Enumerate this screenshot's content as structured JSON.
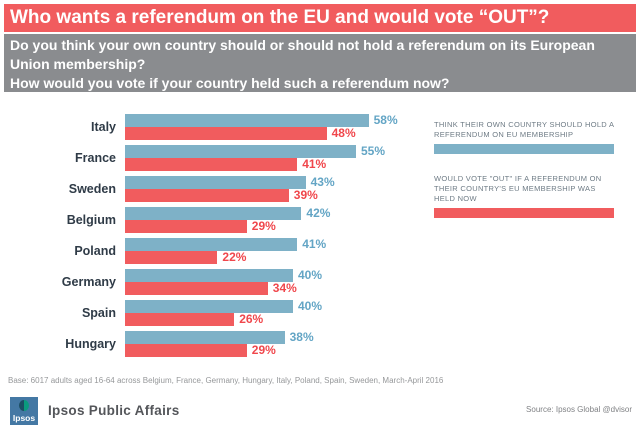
{
  "title": "Who wants a referendum on the EU and would vote “OUT”?",
  "subtitle": {
    "question1": "Do you think your own country should or should not hold a referendum on its European Union membership?",
    "question2": "How would you vote if your country held such a referendum now?"
  },
  "chart_data": {
    "type": "bar",
    "orientation": "horizontal",
    "title": "Who wants a referendum on the EU and would vote “OUT”?",
    "categories": [
      "Italy",
      "France",
      "Sweden",
      "Belgium",
      "Poland",
      "Germany",
      "Spain",
      "Hungary"
    ],
    "series": [
      {
        "name": "THINK THEIR OWN COUNTRY SHOULD HOLD A REFERENDUM ON EU MEMBERSHIP",
        "color": "#7EB1C7",
        "label_color": "#63A5C5",
        "values": [
          58,
          55,
          43,
          42,
          41,
          40,
          40,
          38
        ]
      },
      {
        "name": "WOULD VOTE \"OUT\" IF A REFERENDUM ON THEIR COUNTRY'S EU MEMBERSHIP WAS HELD NOW",
        "color": "#F15C5E",
        "label_color": "#F0474C",
        "values": [
          48,
          41,
          39,
          29,
          22,
          34,
          26,
          29
        ]
      }
    ],
    "value_suffix": "%",
    "xlim": [
      0,
      60
    ],
    "grid": false,
    "legend_position": "right"
  },
  "legend": [
    {
      "label": "THINK THEIR OWN COUNTRY SHOULD  HOLD A REFERENDUM ON  EU MEMBERSHIP",
      "color": "#7EB1C7"
    },
    {
      "label": "WOULD VOTE \"OUT\"  IF A REFERENDUM ON THEIR COUNTRY'S EU MEMBERSHIP WAS HELD NOW",
      "color": "#F15C5E"
    }
  ],
  "footer": {
    "base_note": "Base: 6017 adults aged 16-64 across Belgium, France, Germany, Hungary, Italy, Poland, Spain, Sweden, March-April 2016",
    "logo_text": "Ipsos",
    "brand": "Ipsos Public Affairs",
    "source": "Source: Ipsos Global @dvisor"
  },
  "colors": {
    "accent_red": "#F15C5E",
    "accent_blue": "#7EB1C7",
    "subtitle_bg": "#8A8C8F",
    "country_label": "#2F3B47",
    "legend_text": "#6E7B85",
    "logo_blue": "#4478A4",
    "logo_green": "#0A9A7D",
    "logo_navy": "#1B4E63"
  }
}
